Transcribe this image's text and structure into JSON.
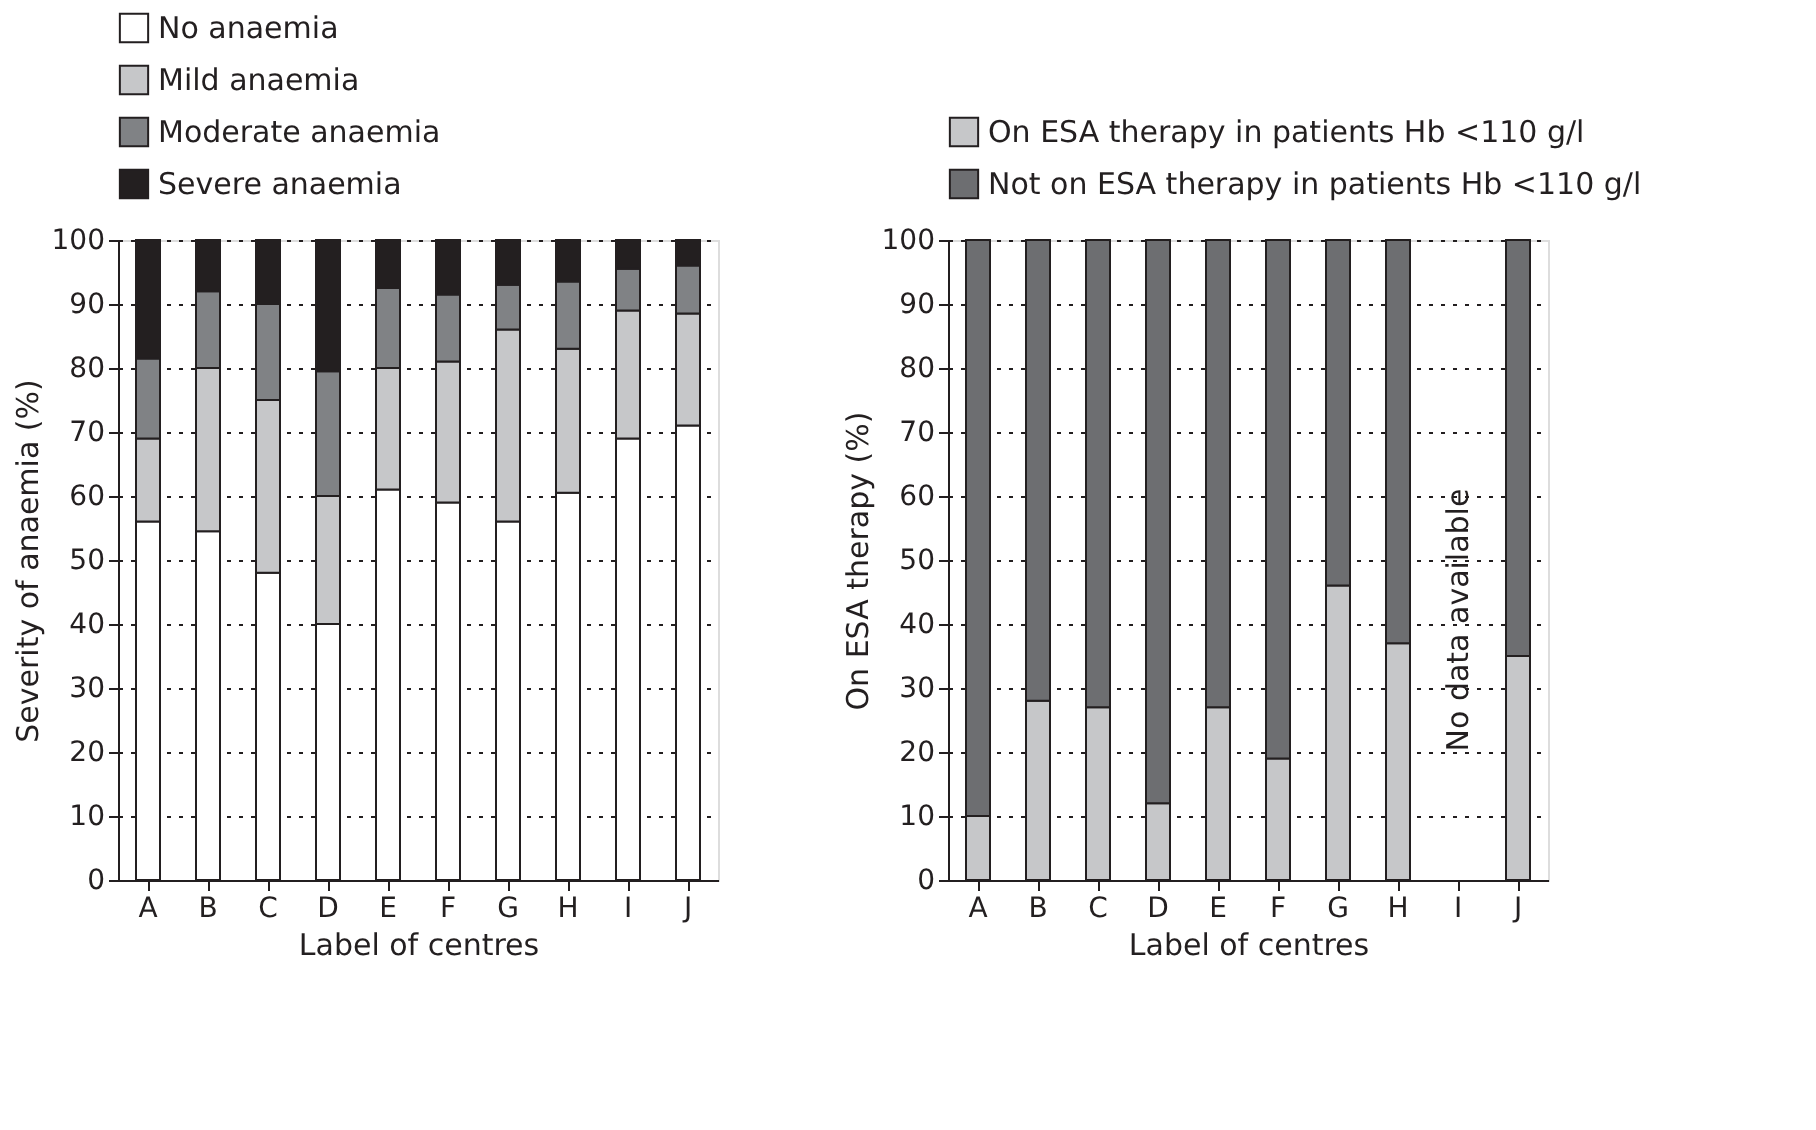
{
  "chart_data": [
    {
      "type": "bar",
      "stacked": true,
      "categories": [
        "A",
        "B",
        "C",
        "D",
        "E",
        "F",
        "G",
        "H",
        "I",
        "J"
      ],
      "xlabel": "Label of centres",
      "ylabel": "Severity of anaemia (%)",
      "ylim": [
        0,
        100
      ],
      "yticks": [
        0,
        10,
        20,
        30,
        40,
        50,
        60,
        70,
        80,
        90,
        100
      ],
      "grid": "y",
      "legend": "top",
      "series": [
        {
          "name": "No anaemia",
          "color": "#ffffff",
          "values": [
            56,
            54.5,
            48,
            40,
            61,
            59,
            56,
            60.5,
            69,
            71
          ]
        },
        {
          "name": "Mild anaemia",
          "color": "#c6c7c9",
          "values": [
            13,
            25.5,
            27,
            20,
            19,
            22,
            30,
            22.5,
            20,
            17.5
          ]
        },
        {
          "name": "Moderate anaemia",
          "color": "#808285",
          "values": [
            12.5,
            12,
            15,
            19.5,
            12.5,
            10.5,
            7,
            10.5,
            6.5,
            7.5
          ]
        },
        {
          "name": "Severe anaemia",
          "color": "#231f20",
          "values": [
            18.5,
            8,
            10,
            20.5,
            7.5,
            8.5,
            7,
            6.5,
            4.5,
            4
          ]
        }
      ]
    },
    {
      "type": "bar",
      "stacked": true,
      "categories": [
        "A",
        "B",
        "C",
        "D",
        "E",
        "F",
        "G",
        "H",
        "I",
        "J"
      ],
      "xlabel": "Label of centres",
      "ylabel": "On ESA therapy (%)",
      "ylim": [
        0,
        100
      ],
      "yticks": [
        0,
        10,
        20,
        30,
        40,
        50,
        60,
        70,
        80,
        90,
        100
      ],
      "grid": "y",
      "legend": "top",
      "annotations": [
        "No data available"
      ],
      "series": [
        {
          "name": "On ESA therapy in patients Hb <110 g/l",
          "color": "#c6c7c9",
          "values": [
            10,
            28,
            27,
            12,
            27,
            19,
            46,
            37,
            null,
            35
          ]
        },
        {
          "name": "Not on ESA therapy in patients Hb <110 g/l",
          "color": "#6d6e71",
          "values": [
            90,
            72,
            73,
            88,
            73,
            81,
            54,
            63,
            null,
            65
          ]
        }
      ]
    }
  ]
}
